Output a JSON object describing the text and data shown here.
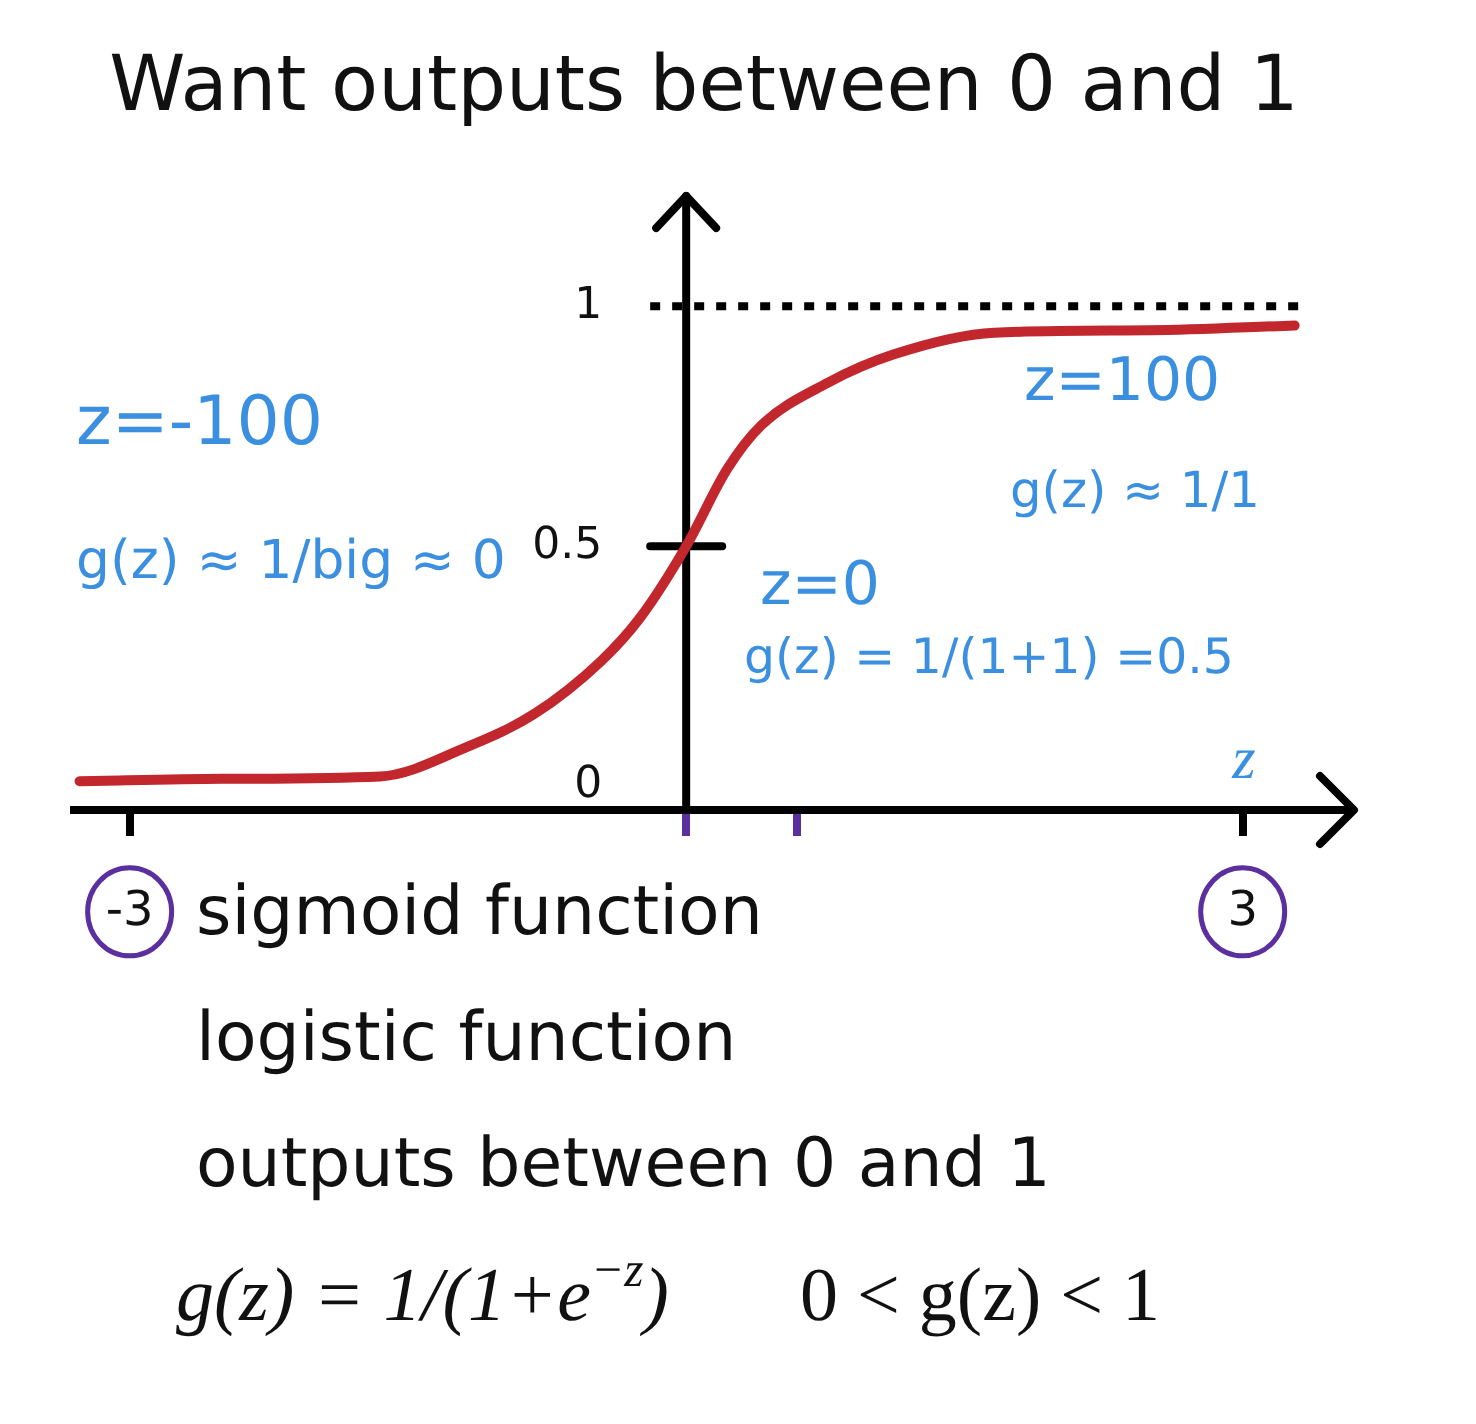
{
  "chart_data": {
    "type": "line",
    "title": "Want outputs between 0 and 1",
    "xlabel": "z",
    "x": [
      -3.27,
      -2.5,
      -1.65,
      -1.19,
      -0.82,
      -0.46,
      -0.25,
      0,
      0.22,
      0.4,
      0.76,
      1.12,
      1.66,
      2.5,
      3.28
    ],
    "values": [
      0.01,
      0.015,
      0.02,
      0.08,
      0.15,
      0.26,
      0.35,
      0.5,
      0.66,
      0.75,
      0.84,
      0.9,
      0.945,
      0.95,
      0.96
    ],
    "color": "#c1272d",
    "marker": "none",
    "xlim": [
      -3.3,
      3.6
    ],
    "ylim": [
      -0.05,
      1.23
    ],
    "xticks": [
      -3,
      {
        "value": 0,
        "label": null
      },
      {
        "value": 0.6,
        "label": null
      },
      3
    ],
    "yticks": [
      0,
      0.5,
      1
    ],
    "ref_lines": [
      {
        "axis": "y",
        "value": 1,
        "color": "#000000",
        "line_style": "dotted"
      }
    ],
    "annotations": [
      "z=-100",
      "g(z) ≈ 1/big ≈ 0",
      "z=100",
      "g(z) ≈ 1/1",
      "z=0",
      "g(z) = 1/(1+1) =0.5",
      "sigmoid function",
      "logistic function",
      "outputs between 0 and 1",
      "g(z) = 1/(1+e$^{−z}$)",
      "0 < g(z) < 1"
    ]
  }
}
